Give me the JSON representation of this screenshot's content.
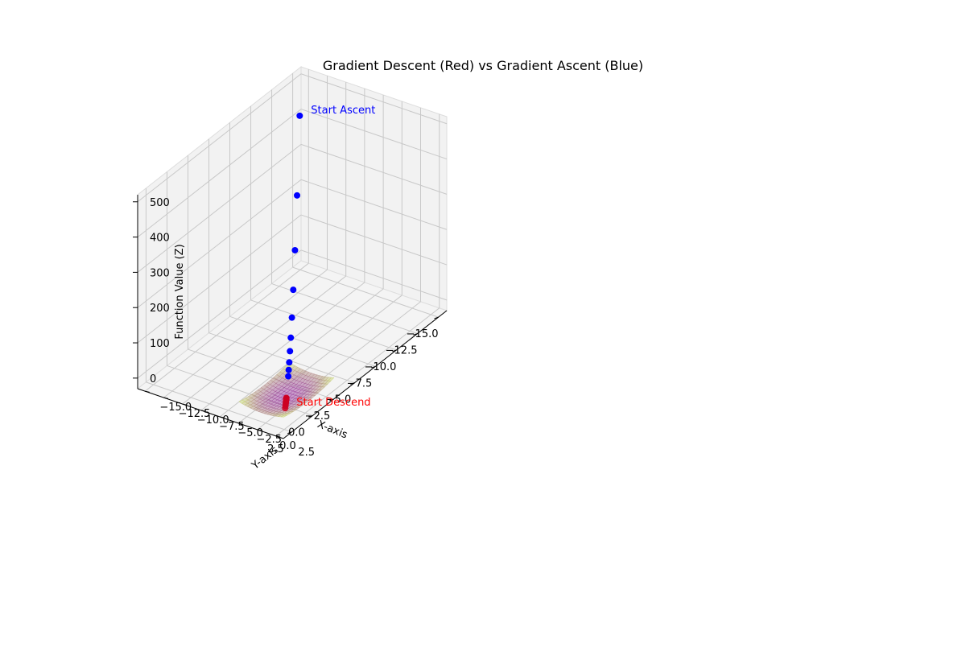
{
  "chart_data": {
    "type": "scatter",
    "projection": "3d",
    "title": "Gradient Descent (Red) vs Gradient Ascent (Blue)",
    "xlabel": "X-axis",
    "ylabel": "Y-axis",
    "zlabel": "Function Value (Z)",
    "xlim": [
      -16,
      3.5
    ],
    "ylim": [
      -16,
      3.5
    ],
    "zlim": [
      -30,
      520
    ],
    "x_ticks": [
      -15.0,
      -12.5,
      -10.0,
      -7.5,
      -5.0,
      -2.5,
      0.0,
      2.5
    ],
    "x_tick_labels": [
      "−15.0",
      "−12.5",
      "−10.0",
      "−7.5",
      "−5.0",
      "−2.5",
      "0.0",
      "2.5"
    ],
    "y_ticks": [
      -15.0,
      -12.5,
      -10.0,
      -7.5,
      -5.0,
      -2.5,
      0.0,
      2.5
    ],
    "y_tick_labels": [
      "−15.0",
      "−12.5",
      "−10.0",
      "−7.5",
      "−5.0",
      "−2.5",
      "0.0",
      "2.5"
    ],
    "z_ticks": [
      0,
      100,
      200,
      300,
      400,
      500
    ],
    "z_tick_labels": [
      "0",
      "100",
      "200",
      "300",
      "400",
      "500"
    ],
    "grid": true,
    "surface": {
      "function": "x^2 + y^2",
      "x_range": [
        -3,
        3
      ],
      "y_range": [
        -3,
        3
      ],
      "colormap": "viridis",
      "alpha": 0.5
    },
    "series": [
      {
        "marker_color": "#0000ff",
        "points": [
          {
            "x": -14.5,
            "y": -14.5,
            "z": 420
          },
          {
            "x": -11.6,
            "y": -11.6,
            "z": 269
          },
          {
            "x": -9.3,
            "y": -9.3,
            "z": 173
          },
          {
            "x": -7.4,
            "y": -7.4,
            "z": 110
          },
          {
            "x": -5.9,
            "y": -5.9,
            "z": 70
          },
          {
            "x": -4.7,
            "y": -4.7,
            "z": 44
          },
          {
            "x": -3.8,
            "y": -3.8,
            "z": 29
          },
          {
            "x": -3.0,
            "y": -3.0,
            "z": 18
          },
          {
            "x": -2.4,
            "y": -2.4,
            "z": 12
          },
          {
            "x": -1.9,
            "y": -1.9,
            "z": 7
          }
        ]
      },
      {
        "marker_color": "#cc0022",
        "points": [
          {
            "x": 1.5,
            "y": 1.5,
            "z": 4.5
          },
          {
            "x": 1.2,
            "y": 1.2,
            "z": 2.9
          },
          {
            "x": 0.96,
            "y": 0.96,
            "z": 1.8
          },
          {
            "x": 0.77,
            "y": 0.77,
            "z": 1.2
          },
          {
            "x": 0.61,
            "y": 0.61,
            "z": 0.75
          },
          {
            "x": 0.49,
            "y": 0.49,
            "z": 0.48
          },
          {
            "x": 0.39,
            "y": 0.39,
            "z": 0.3
          },
          {
            "x": 0.31,
            "y": 0.31,
            "z": 0.2
          },
          {
            "x": 0.25,
            "y": 0.25,
            "z": 0.13
          },
          {
            "x": 0.2,
            "y": 0.2,
            "z": 0.08
          }
        ]
      }
    ],
    "annotations": [
      {
        "text": "Start Ascent",
        "x": -14.5,
        "y": -14.5,
        "z": 420,
        "color": "#0000ff"
      },
      {
        "text": "Start Descend",
        "x": 1.5,
        "y": 1.5,
        "z": 4.5,
        "color": "#ff0000"
      }
    ],
    "colors": {
      "pane": "#f2f2f2",
      "pane_edge": "#dddddd",
      "grid": "#c8c8c8",
      "surface_low": "#9b3fa0",
      "surface_high": "#cde86a"
    }
  }
}
